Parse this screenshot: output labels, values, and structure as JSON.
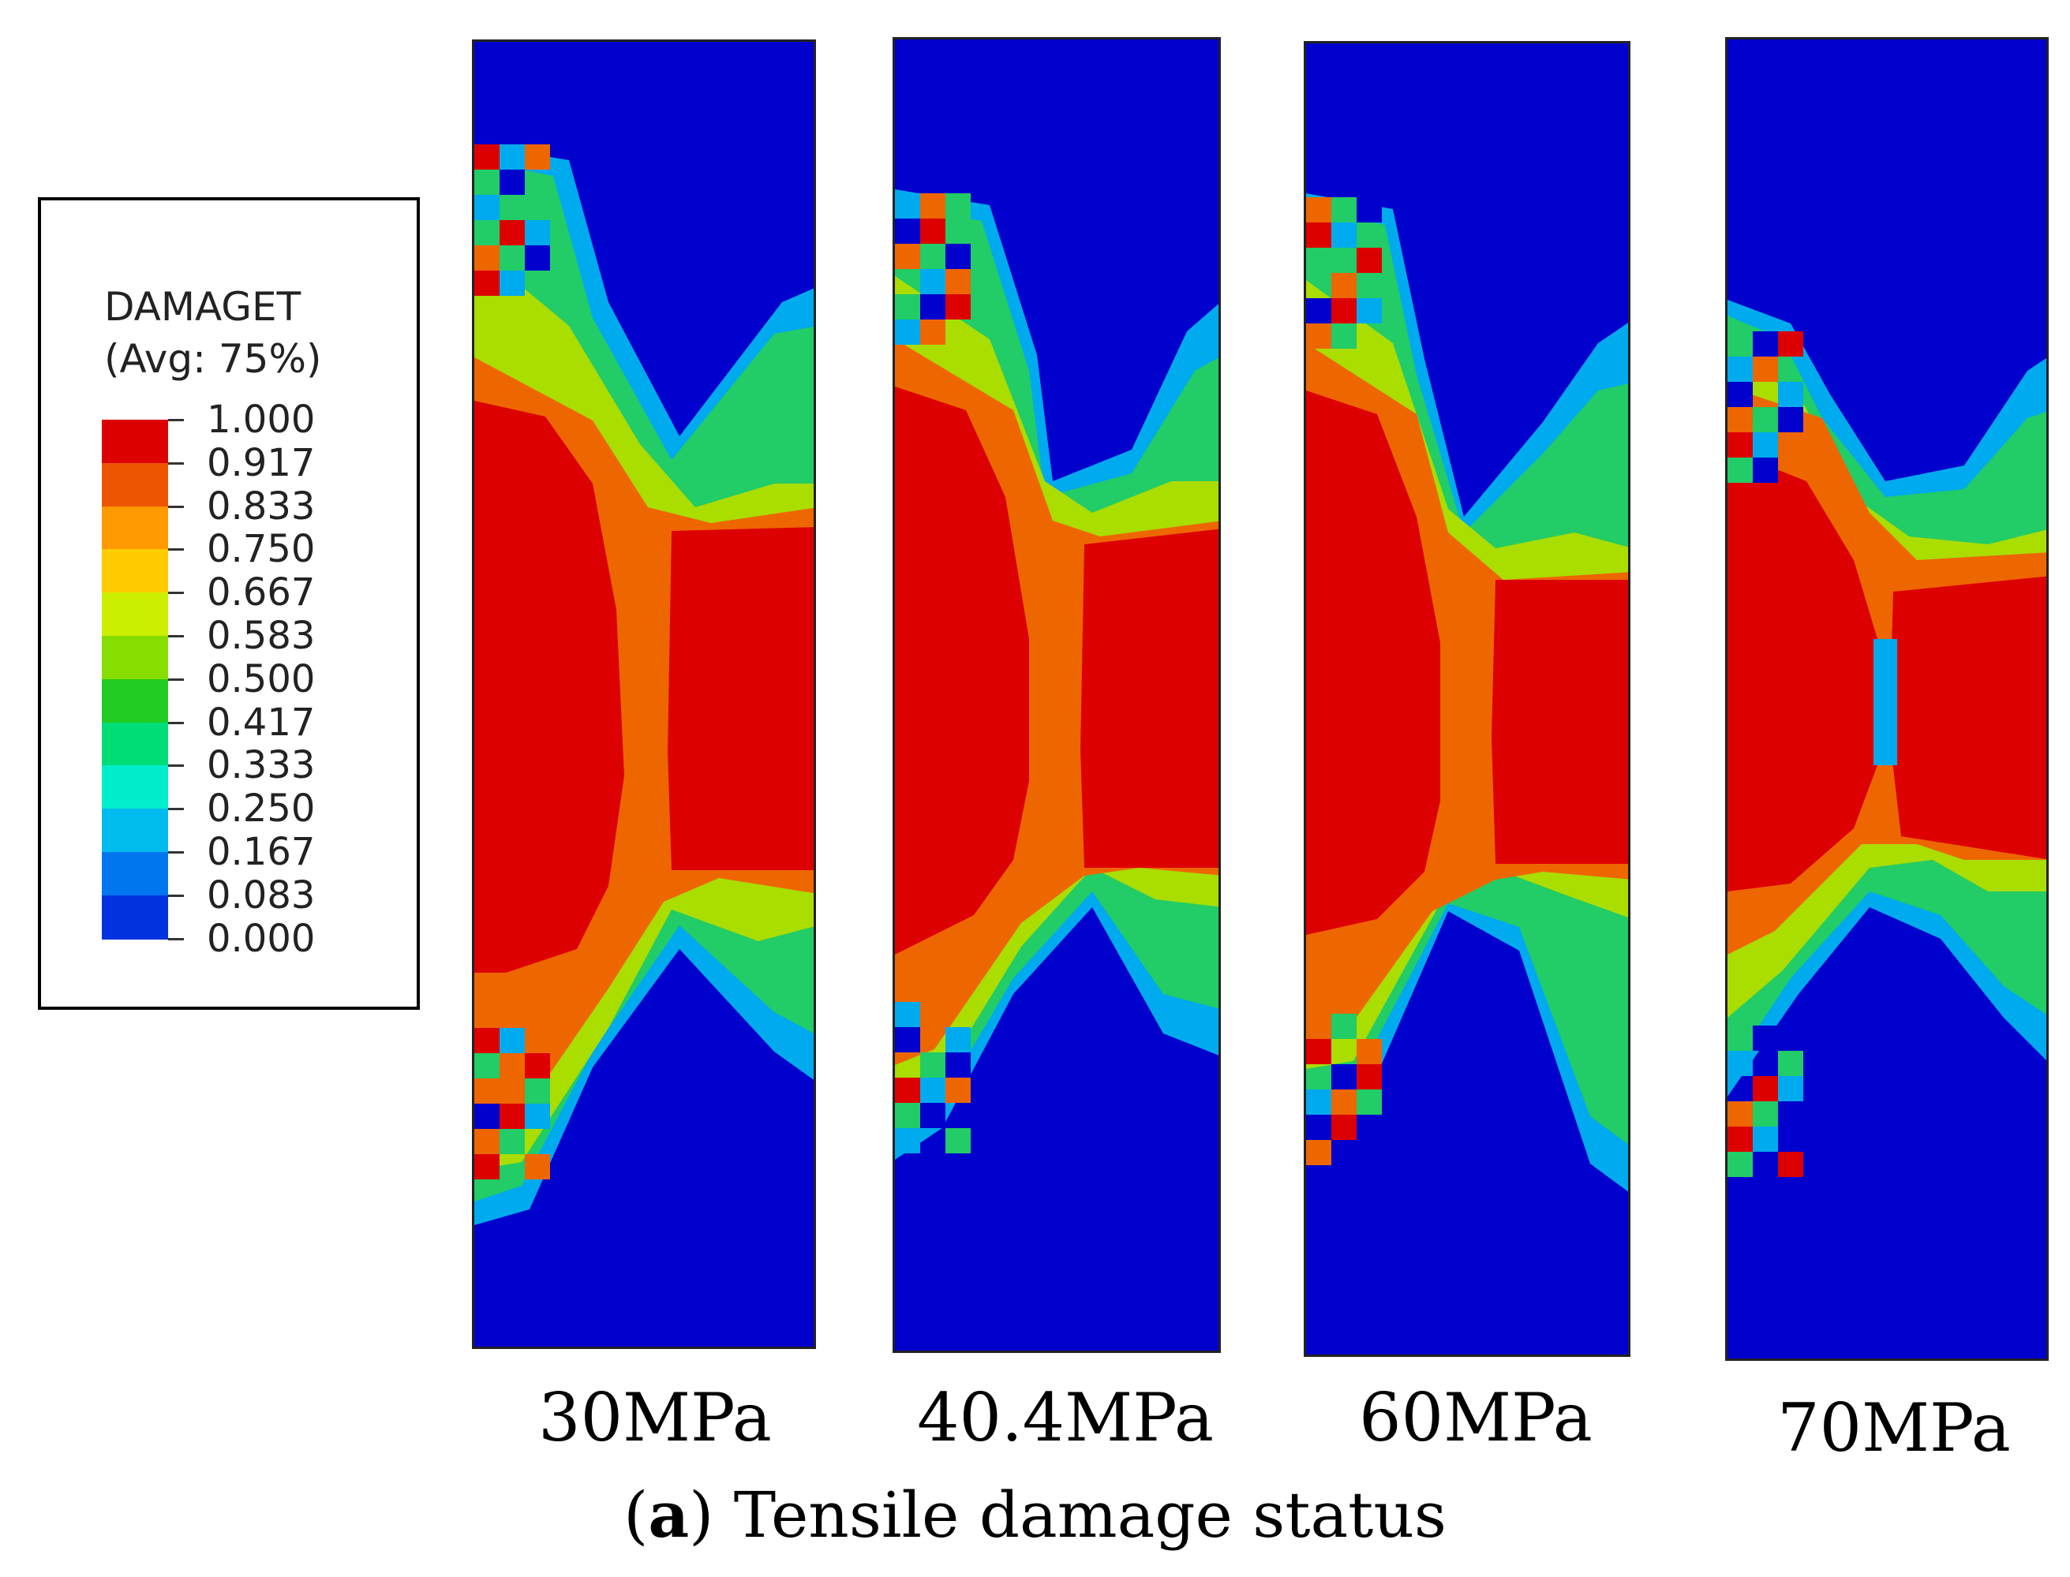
{
  "legend": {
    "title": "DAMAGET",
    "subtitle": "(Avg: 75%)",
    "levels": [
      "1.000",
      "0.917",
      "0.833",
      "0.750",
      "0.667",
      "0.583",
      "0.500",
      "0.417",
      "0.333",
      "0.250",
      "0.167",
      "0.083",
      "0.000"
    ],
    "colors": [
      "#dd0000",
      "#ee5500",
      "#ff9900",
      "#ffcc00",
      "#ccee00",
      "#88dd00",
      "#22cc22",
      "#00dd77",
      "#00eecc",
      "#00bbee",
      "#0077ee",
      "#0033dd",
      "#0000cc"
    ]
  },
  "panels": [
    {
      "label": "30MPa"
    },
    {
      "label": "40.4MPa"
    },
    {
      "label": "60MPa"
    },
    {
      "label": "70MPa"
    }
  ],
  "caption": {
    "letter": "a",
    "text": " Tensile damage status"
  },
  "colors": {
    "undamaged": "#0000cc",
    "full_damage": "#dd0000",
    "high_damage": "#ee6600",
    "medium_damage": "#ffaa00",
    "mid_damage": "#aadd00",
    "low_damage": "#22cc66",
    "edge_damage": "#00aaee"
  }
}
